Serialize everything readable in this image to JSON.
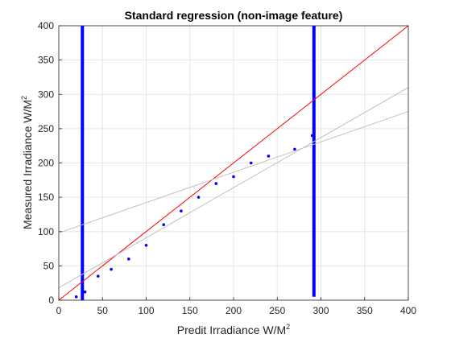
{
  "chart_data": {
    "type": "scatter",
    "title": "Standard regression (non-image feature)",
    "xlabel": "Predit Irradiance W/M",
    "xlabel_sup": "2",
    "ylabel": "Measured Irradiance W/M",
    "ylabel_sup": "2",
    "xlim": [
      0,
      400
    ],
    "ylim": [
      0,
      400
    ],
    "xticks": [
      0,
      50,
      100,
      150,
      200,
      250,
      300,
      350,
      400
    ],
    "yticks": [
      0,
      50,
      100,
      150,
      200,
      250,
      300,
      350,
      400
    ],
    "grid": true,
    "scatter_color": "#0000ff",
    "points": [
      [
        20,
        5
      ],
      [
        30,
        12
      ],
      [
        45,
        35
      ],
      [
        60,
        45
      ],
      [
        80,
        60
      ],
      [
        100,
        80
      ],
      [
        120,
        110
      ],
      [
        140,
        130
      ],
      [
        160,
        150
      ],
      [
        180,
        170
      ],
      [
        200,
        180
      ],
      [
        220,
        200
      ],
      [
        240,
        210
      ],
      [
        270,
        220
      ],
      [
        290,
        240
      ]
    ],
    "vertical_bands": [
      {
        "x": 27,
        "y_min": 0,
        "y_max": 400
      },
      {
        "x": 292,
        "y_min": 5,
        "y_max": 400
      }
    ],
    "lines": [
      {
        "x": [
          0,
          400
        ],
        "y": [
          0,
          400
        ],
        "color": "#ff0000"
      },
      {
        "x": [
          0,
          400
        ],
        "y": [
          98,
          275
        ],
        "color": "#c0c0c0"
      },
      {
        "x": [
          0,
          400
        ],
        "y": [
          18,
          310
        ],
        "color": "#c0c0c0"
      }
    ]
  }
}
